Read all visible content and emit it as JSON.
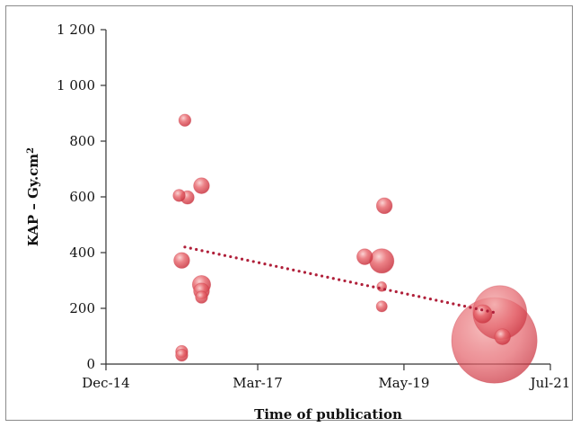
{
  "chart_data": {
    "type": "scatter",
    "subtype": "bubble",
    "xlabel": "Time of publication",
    "ylabel": "KAP – Gy.cm",
    "ylabel_superscript": "2",
    "xlim": [
      "2014-12-01",
      "2021-07-01"
    ],
    "ylim": [
      0,
      1200
    ],
    "x_ticks": [
      "Dec-14",
      "Mar-17",
      "May-19",
      "Jul-21"
    ],
    "x_tick_dates": [
      "2014-12-01",
      "2017-03-01",
      "2019-05-01",
      "2021-07-01"
    ],
    "y_ticks": [
      "0",
      "200",
      "400",
      "600",
      "800",
      "1 000",
      "1 200"
    ],
    "y_tick_values": [
      0,
      200,
      400,
      600,
      800,
      1000,
      1200
    ],
    "grid": false,
    "legend": "none",
    "bubble_color": "#e0525b",
    "trendline": {
      "style": "dotted",
      "color": "#b0203a",
      "x": [
        "2016-02-01",
        "2020-09-01"
      ],
      "y": [
        420,
        185
      ]
    },
    "points": [
      {
        "x": "2016-02-01",
        "y": 875,
        "size": 1.0
      },
      {
        "x": "2016-01-01",
        "y": 605,
        "size": 1.0
      },
      {
        "x": "2016-02-15",
        "y": 598,
        "size": 1.1
      },
      {
        "x": "2016-05-01",
        "y": 640,
        "size": 1.3
      },
      {
        "x": "2016-01-15",
        "y": 372,
        "size": 1.3
      },
      {
        "x": "2016-05-01",
        "y": 285,
        "size": 1.5
      },
      {
        "x": "2016-05-01",
        "y": 262,
        "size": 1.3
      },
      {
        "x": "2016-05-01",
        "y": 240,
        "size": 1.0
      },
      {
        "x": "2016-01-15",
        "y": 45,
        "size": 1.0
      },
      {
        "x": "2016-01-15",
        "y": 32,
        "size": 1.0
      },
      {
        "x": "2018-10-01",
        "y": 385,
        "size": 1.3
      },
      {
        "x": "2019-01-01",
        "y": 370,
        "size": 2.0
      },
      {
        "x": "2019-01-15",
        "y": 568,
        "size": 1.3
      },
      {
        "x": "2019-01-01",
        "y": 278,
        "size": 0.8
      },
      {
        "x": "2019-01-01",
        "y": 207,
        "size": 0.9
      },
      {
        "x": "2020-10-01",
        "y": 185,
        "size": 4.4
      },
      {
        "x": "2020-09-01",
        "y": 85,
        "size": 7.0
      },
      {
        "x": "2020-07-01",
        "y": 180,
        "size": 1.5
      },
      {
        "x": "2020-10-15",
        "y": 98,
        "size": 1.3
      }
    ]
  }
}
